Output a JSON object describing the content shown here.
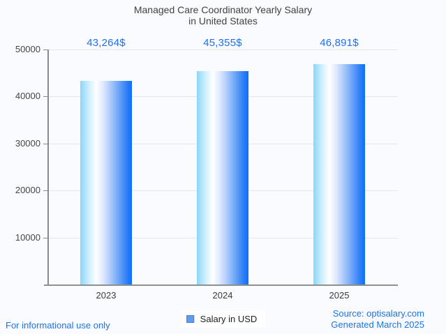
{
  "title": {
    "line1": "Managed Care Coordinator Yearly Salary",
    "line2": "in United States"
  },
  "chart_data": {
    "type": "bar",
    "title": "Managed Care Coordinator Yearly Salary in United States",
    "categories": [
      "2023",
      "2024",
      "2025"
    ],
    "series": [
      {
        "name": "Salary in USD",
        "values": [
          43264,
          45355,
          46891
        ]
      }
    ],
    "value_labels": [
      "43,264$",
      "45,355$",
      "46,891$"
    ],
    "xlabel": "",
    "ylabel": "",
    "ylim": [
      0,
      50000
    ],
    "yticks": [
      10000,
      20000,
      30000,
      40000,
      50000
    ],
    "ytick_labels": [
      "10000",
      "20000",
      "30000",
      "40000",
      "50000"
    ],
    "grid": true,
    "legend_position": "bottom"
  },
  "legend": {
    "label": "Salary in USD",
    "swatch_color": "#5f9cf2"
  },
  "footer": {
    "left_note": "For informational use only",
    "source_line": "Source: optisalary.com",
    "generated_line": "Generated March 2025"
  },
  "colors": {
    "value_label_blue": "#1f6ff2",
    "footer_blue": "#1a73e8",
    "bar_gradient_left": "#8ad6fb",
    "bar_gradient_mid": "#ffffff",
    "bar_gradient_right": "#0e6efa",
    "background": "#fafbfe"
  }
}
